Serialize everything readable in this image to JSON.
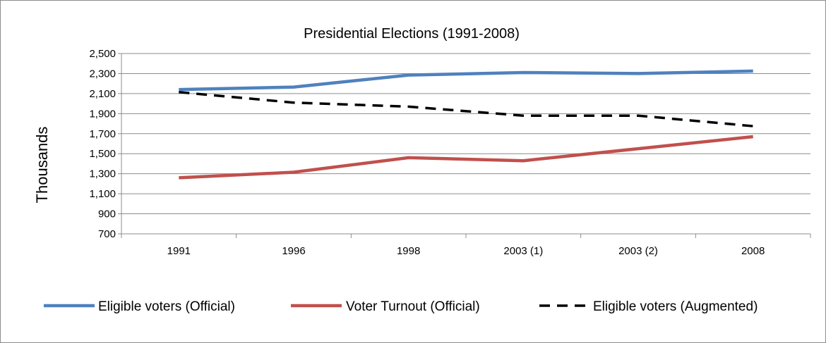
{
  "chart_data": {
    "type": "line",
    "title": "Presidential Elections (1991-2008)",
    "ylabel": "Thousands",
    "xlabel": "",
    "categories": [
      "1991",
      "1996",
      "1998",
      "2003 (1)",
      "2003 (2)",
      "2008"
    ],
    "ylim": [
      700,
      2500
    ],
    "yticks": [
      700,
      900,
      1100,
      1300,
      1500,
      1700,
      1900,
      2100,
      2300,
      2500
    ],
    "ytick_labels": [
      "700",
      "900",
      "1,100",
      "1,300",
      "1,500",
      "1,700",
      "1,900",
      "2,100",
      "2,300",
      "2,500"
    ],
    "grid": true,
    "legend_position": "bottom",
    "series": [
      {
        "name": "Eligible voters (Official)",
        "color": "#4F81BD",
        "dash": "solid",
        "values": [
          2140,
          2165,
          2285,
          2310,
          2300,
          2325
        ]
      },
      {
        "name": "Voter Turnout (Official)",
        "color": "#C0504D",
        "dash": "solid",
        "values": [
          1260,
          1315,
          1460,
          1430,
          1550,
          1670
        ]
      },
      {
        "name": "Eligible voters (Augmented)",
        "color": "#000000",
        "dash": "dashed",
        "values": [
          2115,
          2010,
          1970,
          1880,
          1880,
          1775
        ]
      }
    ]
  }
}
